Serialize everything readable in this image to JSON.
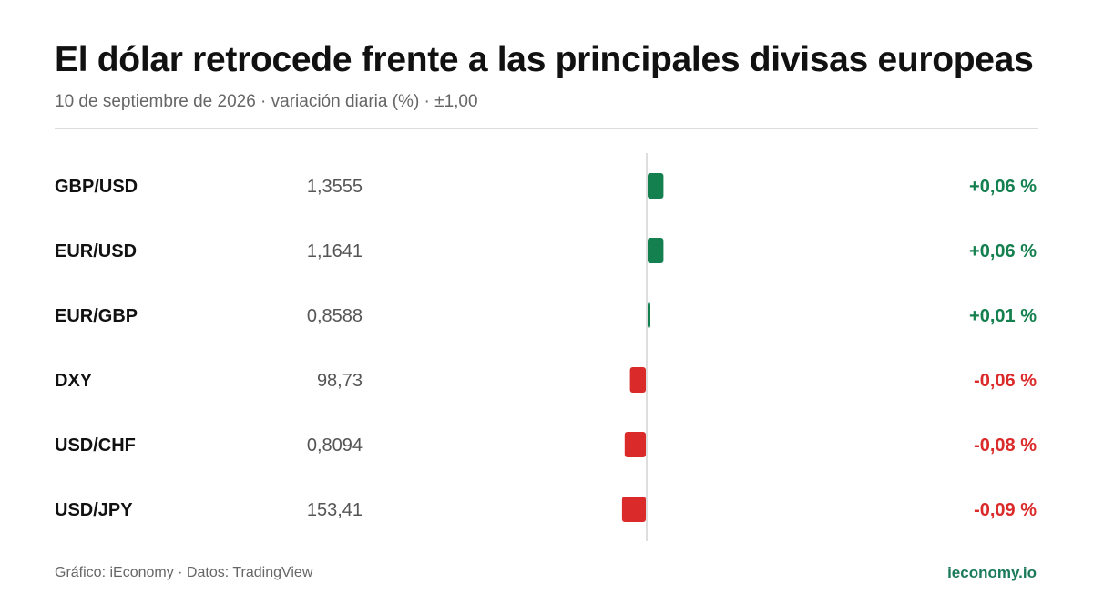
{
  "title": "El dólar retrocede frente a las principales divisas europeas",
  "subtitle": "10 de septiembre de 2026 · variación diaria (%) · ±1,00",
  "footer": {
    "source": "Gráfico: iEconomy · Datos: TradingView",
    "brand": "ieconomy.io"
  },
  "colors": {
    "positive": "#15804f",
    "negative": "#db2a2a",
    "brand": "#1a7a5b"
  },
  "chart_data": {
    "type": "bar",
    "orientation": "horizontal",
    "title": "El dólar retrocede frente a las principales divisas europeas",
    "subtitle": "10 de septiembre de 2026 · variación diaria (%) · ±1,00",
    "xlim": [
      -1.0,
      1.0
    ],
    "grid": false,
    "rows": [
      {
        "pair": "GBP/USD",
        "price": "1,3555",
        "change": 0.06,
        "change_label": "+0,06 %"
      },
      {
        "pair": "EUR/USD",
        "price": "1,1641",
        "change": 0.06,
        "change_label": "+0,06 %"
      },
      {
        "pair": "EUR/GBP",
        "price": "0,8588",
        "change": 0.01,
        "change_label": "+0,01 %"
      },
      {
        "pair": "DXY",
        "price": "98,73",
        "change": -0.06,
        "change_label": "-0,06 %"
      },
      {
        "pair": "USD/CHF",
        "price": "0,8094",
        "change": -0.08,
        "change_label": "-0,08 %"
      },
      {
        "pair": "USD/JPY",
        "price": "153,41",
        "change": -0.09,
        "change_label": "-0,09 %"
      }
    ]
  }
}
